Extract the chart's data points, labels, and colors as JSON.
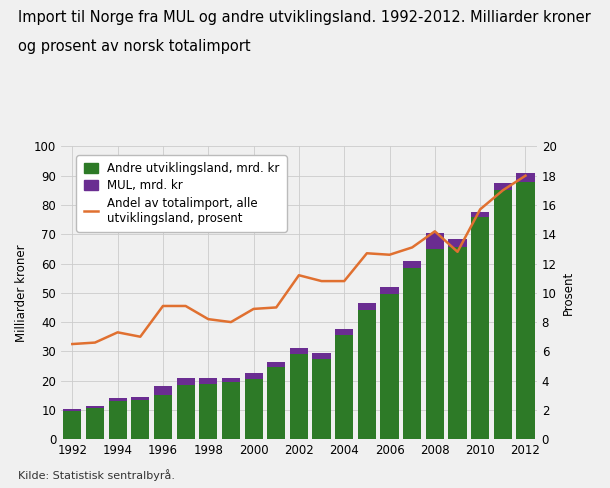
{
  "years": [
    1992,
    1993,
    1994,
    1995,
    1996,
    1997,
    1998,
    1999,
    2000,
    2001,
    2002,
    2003,
    2004,
    2005,
    2006,
    2007,
    2008,
    2009,
    2010,
    2011,
    2012
  ],
  "andre_utviklingsland": [
    9.5,
    10.5,
    13.0,
    13.5,
    15.0,
    18.5,
    19.0,
    19.5,
    20.5,
    24.5,
    29.0,
    27.5,
    35.5,
    44.0,
    49.5,
    58.5,
    65.0,
    65.5,
    76.0,
    85.0,
    88.0
  ],
  "mul": [
    0.8,
    0.8,
    1.0,
    1.0,
    3.0,
    2.5,
    2.0,
    1.5,
    2.0,
    2.0,
    2.0,
    2.0,
    2.0,
    2.5,
    2.5,
    2.5,
    5.5,
    3.0,
    1.5,
    2.5,
    3.0
  ],
  "prosent": [
    6.5,
    6.6,
    7.3,
    7.0,
    9.1,
    9.1,
    8.2,
    8.0,
    8.9,
    9.0,
    11.2,
    10.8,
    10.8,
    12.7,
    12.6,
    13.1,
    14.2,
    12.8,
    15.7,
    17.0,
    18.0
  ],
  "green_color": "#2d7a27",
  "purple_color": "#6a2d91",
  "orange_color": "#e07030",
  "background_color": "#f0f0f0",
  "grid_color": "#cccccc",
  "title_line1": "Import til Norge fra MUL og andre utviklingsland. 1992-2012. Milliarder kroner",
  "title_line2": "og prosent av norsk totalimport",
  "ylabel_left": "Milliarder kroner",
  "ylabel_right": "Prosent",
  "ylim_left": [
    0,
    100
  ],
  "ylim_right": [
    0,
    20
  ],
  "yticks_left": [
    0,
    10,
    20,
    30,
    40,
    50,
    60,
    70,
    80,
    90,
    100
  ],
  "yticks_right": [
    0,
    2,
    4,
    6,
    8,
    10,
    12,
    14,
    16,
    18,
    20
  ],
  "xticks": [
    1992,
    1994,
    1996,
    1998,
    2000,
    2002,
    2004,
    2006,
    2008,
    2010,
    2012
  ],
  "legend_andre": "Andre utviklingsland, mrd. kr",
  "legend_mul": "MUL, mrd. kr",
  "legend_prosent": "Andel av totalimport, alle\nutviklingsland, prosent",
  "source_text": "Kilde: Statistisk sentralbyrå.",
  "title_fontsize": 10.5,
  "label_fontsize": 8.5,
  "tick_fontsize": 8.5,
  "legend_fontsize": 8.5,
  "source_fontsize": 8
}
